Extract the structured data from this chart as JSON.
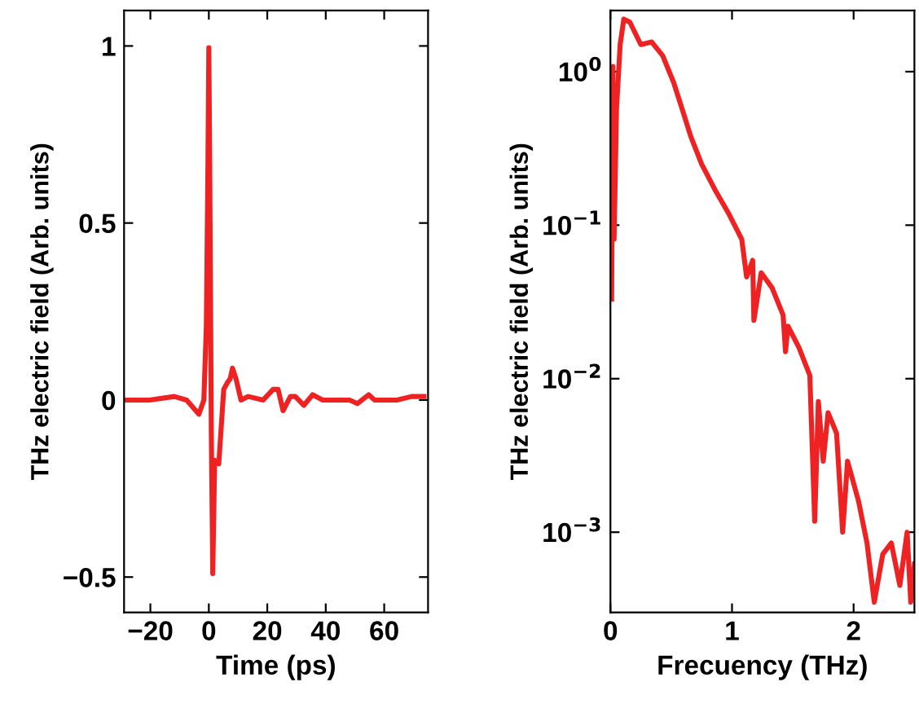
{
  "chart_data": [
    {
      "type": "line",
      "xlabel": "Time (ps)",
      "ylabel": "THz electric field (Arb. units)",
      "xlim": [
        -29,
        75
      ],
      "ylim": [
        -0.6,
        1.1
      ],
      "xticks": [
        {
          "value": -20,
          "label": "−20"
        },
        0,
        20,
        40,
        60
      ],
      "yticks": [
        {
          "value": -0.5,
          "label": "−0.5"
        },
        0,
        0.5,
        1
      ],
      "grid": false,
      "legend": false,
      "series": [
        {
          "color": "#ee2222",
          "x": [
            -29,
            -20.3,
            -11.8,
            -7.6,
            -3.4,
            -1.7,
            -0.85,
            -0.3,
            0,
            0.3,
            0.85,
            1.35,
            2.0,
            3.4,
            5.1,
            6.4,
            7.3,
            8.1,
            9.3,
            11,
            13.5,
            18.6,
            22,
            23.7,
            25.4,
            27.9,
            29.6,
            32.5,
            35.5,
            39,
            44,
            48.2,
            50.8,
            54.7,
            56.7,
            64.3,
            69.4,
            73.6
          ],
          "values": [
            0,
            0,
            0.01,
            0,
            -0.04,
            0,
            0.21,
            0.67,
            0.995,
            0.67,
            -0.09,
            -0.49,
            -0.17,
            -0.18,
            0.03,
            0.05,
            0.06,
            0.09,
            0.06,
            0,
            0.01,
            0,
            0.03,
            0.03,
            -0.03,
            0.01,
            0.01,
            -0.015,
            0.015,
            0,
            0,
            0,
            -0.01,
            0.015,
            0,
            0,
            0.01,
            0.01
          ]
        }
      ]
    },
    {
      "type": "line",
      "xlabel": "Frecuency (THz)",
      "ylabel": "THz electric field (Arb. units)",
      "log": "y",
      "xlim": [
        0,
        2.5
      ],
      "ylim": [
        0.0003,
        2.5
      ],
      "xticks": [
        0,
        1,
        2
      ],
      "yticks": [
        {
          "value": 0.001,
          "label": "10$^{−3}$"
        },
        {
          "value": 0.01,
          "label": "10$^{−2}$"
        },
        {
          "value": 0.1,
          "label": "10$^{−1}$"
        },
        {
          "value": 1,
          "label": "10$^{0}$"
        }
      ],
      "grid": false,
      "legend": false,
      "series": [
        {
          "color": "#ee2222",
          "x": [
            0.01,
            0.02,
            0.03,
            0.05,
            0.08,
            0.11,
            0.16,
            0.25,
            0.34,
            0.43,
            0.52,
            0.59,
            0.66,
            0.75,
            0.86,
            0.97,
            1.08,
            1.12,
            1.17,
            1.18,
            1.24,
            1.33,
            1.42,
            1.44,
            1.46,
            1.55,
            1.64,
            1.68,
            1.71,
            1.75,
            1.79,
            1.86,
            1.91,
            1.95,
            2.04,
            2.11,
            2.17,
            2.24,
            2.31,
            2.38,
            2.44,
            2.47,
            2.5
          ],
          "values": [
            0.033,
            1.08,
            0.081,
            0.57,
            1.5,
            2.2,
            2.1,
            1.5,
            1.56,
            1.27,
            0.85,
            0.57,
            0.38,
            0.25,
            0.17,
            0.12,
            0.081,
            0.046,
            0.059,
            0.024,
            0.049,
            0.039,
            0.026,
            0.015,
            0.022,
            0.016,
            0.0105,
            0.00118,
            0.0071,
            0.0029,
            0.006,
            0.0044,
            0.001,
            0.0029,
            0.0016,
            0.00085,
            0.00035,
            0.00072,
            0.00085,
            0.00045,
            0.001,
            0.00035,
            0.00062
          ]
        }
      ]
    }
  ]
}
